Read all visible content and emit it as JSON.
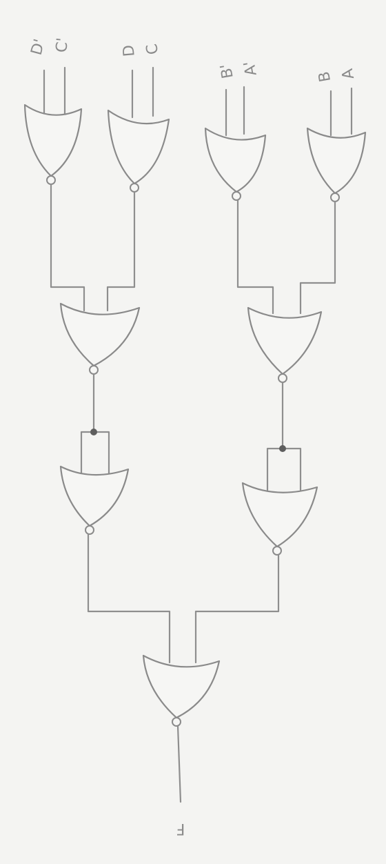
{
  "diagram": {
    "inputs": [
      "D'",
      "C'",
      "D",
      "C",
      "B'",
      "A'",
      "B",
      "A"
    ],
    "output": "F",
    "colors": {
      "paper": "#f4f4f2",
      "stroke": "#8a8a8a",
      "junction": "#5e5e5e"
    }
  }
}
